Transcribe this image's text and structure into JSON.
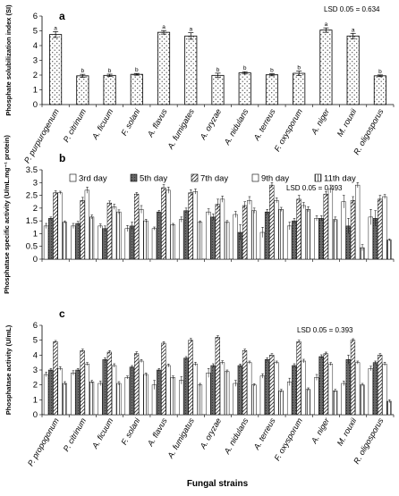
{
  "chart_data": [
    {
      "panel": "a",
      "type": "bar",
      "ylabel": "Phosphate solubilization index (SI)",
      "ylim": [
        0,
        6
      ],
      "yticks": [
        "0",
        "1",
        "2",
        "3",
        "4",
        "5",
        "6"
      ],
      "lsd": "LSD 0.05 = 0.634",
      "categories": [
        "P. purpurogenum",
        "P. citrinum",
        "A. ficuum",
        "F. solani",
        "A. flavus",
        "A. fumigates",
        "A. oryzae",
        "A. nidulans",
        "A. terreus",
        "F. oxysporum",
        "A. niger",
        "M. rouxii",
        "R. oligosporus"
      ],
      "values": [
        4.75,
        1.95,
        1.98,
        2.05,
        4.9,
        4.65,
        1.98,
        2.15,
        2.02,
        2.12,
        5.05,
        4.65,
        1.95
      ],
      "errors": [
        0.2,
        0.1,
        0.08,
        0.06,
        0.12,
        0.22,
        0.15,
        0.08,
        0.07,
        0.15,
        0.15,
        0.18,
        0.06
      ],
      "letters": [
        "a",
        "b",
        "b",
        "b",
        "a",
        "a",
        "b",
        "b",
        "b",
        "b",
        "a",
        "a",
        "b"
      ]
    },
    {
      "panel": "b",
      "type": "bar",
      "ylabel": "Phosphatase specific activity (U/mL.mg⁻¹ protein)",
      "ylim": [
        0,
        3.5
      ],
      "yticks": [
        "0",
        "0.5",
        "1",
        "1.5",
        "2",
        "2.5",
        "3",
        "3.5"
      ],
      "lsd": "LSD 0.05 = 0.493",
      "categories": [
        "P. propogonum",
        "P. citrinum",
        "A. ficuum",
        "F. solani",
        "A. flavus",
        "A. fumigatus",
        "A. oryzae",
        "A. nidulans",
        "A. terreus",
        "F. oxysporum",
        "A. niger",
        "M. rouxii",
        "R. oligosporus"
      ],
      "series": [
        {
          "name": "3rd day",
          "values": [
            1.3,
            1.3,
            1.3,
            1.2,
            1.2,
            1.55,
            1.85,
            1.75,
            1.05,
            1.3,
            1.6,
            2.25,
            1.65
          ],
          "errors": [
            0.1,
            0.1,
            0.08,
            0.12,
            0.06,
            0.1,
            0.12,
            0.12,
            0.2,
            0.15,
            0.1,
            0.25,
            0.3
          ]
        },
        {
          "name": "5th day",
          "values": [
            1.6,
            1.4,
            1.2,
            1.3,
            1.85,
            1.9,
            1.65,
            1.05,
            1.85,
            1.5,
            1.6,
            1.3,
            1.6
          ],
          "errors": [
            0.05,
            0.08,
            0.1,
            0.15,
            0.06,
            0.1,
            0.12,
            0.3,
            0.1,
            0.1,
            0.1,
            0.3,
            0.3
          ]
        },
        {
          "name": "7th day",
          "values": [
            2.6,
            2.3,
            2.2,
            2.55,
            2.8,
            2.6,
            2.15,
            2.1,
            2.9,
            2.35,
            2.55,
            2.3,
            2.35
          ],
          "errors": [
            0.08,
            0.12,
            0.08,
            0.06,
            0.12,
            0.12,
            0.2,
            0.15,
            0.1,
            0.15,
            0.1,
            0.15,
            0.15
          ]
        },
        {
          "name": "9th day",
          "values": [
            2.6,
            2.7,
            2.05,
            1.95,
            2.7,
            2.65,
            2.35,
            2.3,
            2.3,
            2.1,
            2.75,
            2.9,
            2.45
          ],
          "errors": [
            0.06,
            0.12,
            0.1,
            0.15,
            0.12,
            0.1,
            0.12,
            0.15,
            0.1,
            0.12,
            0.15,
            0.1,
            0.08
          ]
        },
        {
          "name": "11th day",
          "values": [
            1.45,
            1.65,
            1.85,
            1.5,
            1.35,
            1.45,
            1.45,
            1.9,
            1.95,
            1.95,
            1.55,
            0.45,
            0.75
          ],
          "errors": [
            0.05,
            0.08,
            0.08,
            0.06,
            0.05,
            0.05,
            0.06,
            0.1,
            0.08,
            0.1,
            0.1,
            0.12,
            0.04
          ]
        }
      ]
    },
    {
      "panel": "c",
      "type": "bar",
      "ylabel": "Phosphatase activity (U/mL)",
      "xlabel": "Fungal strains",
      "ylim": [
        0,
        6
      ],
      "yticks": [
        "0",
        "1",
        "2",
        "3",
        "4",
        "5",
        "6"
      ],
      "lsd": "LSD 0.05 = 0.393",
      "categories": [
        "P. propogonum",
        "P. citrinum",
        "A. ficuum",
        "F. solani",
        "A. flavus",
        "A. fumigatus",
        "A. oryzae",
        "A. nidulans",
        "A. terreus",
        "F. oxysporum",
        "A. niger",
        "M. rouxii",
        "R. oligosporus"
      ],
      "series": [
        {
          "name": "3rd day",
          "values": [
            2.7,
            2.8,
            2.1,
            2.5,
            2.0,
            2.3,
            2.8,
            2.1,
            2.6,
            2.2,
            2.5,
            2.1,
            3.1
          ],
          "errors": [
            0.15,
            0.15,
            0.15,
            0.1,
            0.3,
            0.25,
            0.3,
            0.2,
            0.15,
            0.25,
            0.2,
            0.15,
            0.15
          ]
        },
        {
          "name": "5th day",
          "values": [
            3.0,
            3.0,
            3.7,
            3.2,
            3.0,
            3.8,
            3.3,
            3.3,
            3.7,
            3.3,
            3.9,
            3.7,
            3.5
          ],
          "errors": [
            0.1,
            0.1,
            0.12,
            0.1,
            0.1,
            0.1,
            0.12,
            0.1,
            0.12,
            0.12,
            0.12,
            0.3,
            0.1
          ]
        },
        {
          "name": "7th day",
          "values": [
            4.9,
            4.3,
            4.2,
            4.1,
            4.8,
            5.0,
            5.2,
            4.3,
            4.0,
            4.9,
            4.1,
            5.0,
            4.0
          ],
          "errors": [
            0.08,
            0.1,
            0.1,
            0.12,
            0.1,
            0.12,
            0.1,
            0.1,
            0.1,
            0.1,
            0.1,
            0.1,
            0.1
          ]
        },
        {
          "name": "9th day",
          "values": [
            3.1,
            3.4,
            3.3,
            3.6,
            3.3,
            3.4,
            3.5,
            3.5,
            3.5,
            3.6,
            3.4,
            3.5,
            3.4
          ],
          "errors": [
            0.12,
            0.1,
            0.12,
            0.1,
            0.1,
            0.12,
            0.12,
            0.1,
            0.1,
            0.12,
            0.1,
            0.1,
            0.12
          ]
        },
        {
          "name": "11th day",
          "values": [
            2.1,
            2.2,
            2.1,
            2.7,
            2.5,
            2.0,
            2.9,
            2.0,
            1.6,
            1.7,
            1.6,
            2.0,
            0.9
          ],
          "errors": [
            0.12,
            0.1,
            0.12,
            0.1,
            0.1,
            0.1,
            0.1,
            0.08,
            0.1,
            0.1,
            0.1,
            0.1,
            0.1
          ]
        }
      ]
    }
  ],
  "xlabel": "Fungal strains"
}
